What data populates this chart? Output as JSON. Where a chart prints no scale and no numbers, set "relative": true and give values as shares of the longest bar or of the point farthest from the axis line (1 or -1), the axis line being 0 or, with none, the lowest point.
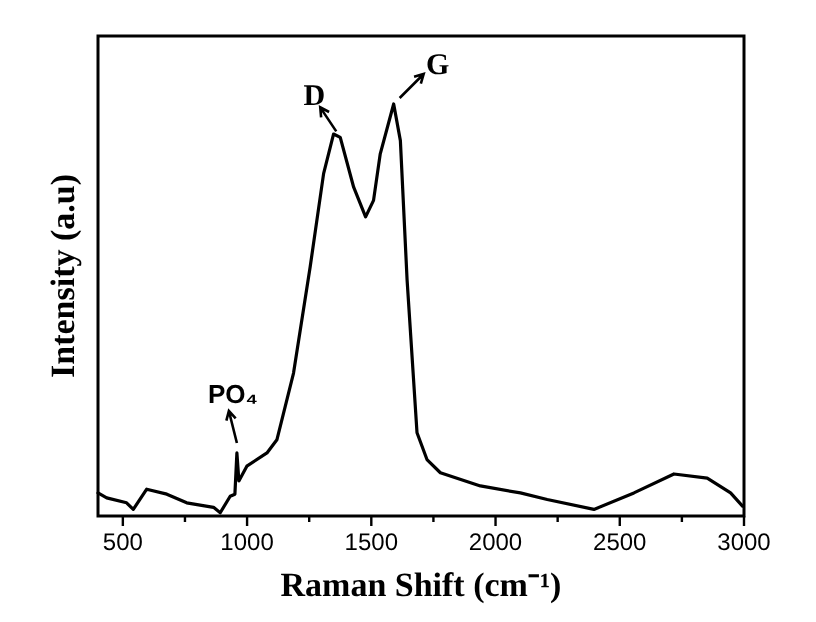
{
  "chart_data": {
    "type": "line",
    "relative": true,
    "xlabel": "Raman Shift (cm⁻¹)",
    "ylabel": "Intensity (a.u)",
    "xlim": [
      400,
      3000
    ],
    "xticks": [
      500,
      {
        "value": 750,
        "label": null
      },
      1000,
      {
        "value": 1250,
        "label": null
      },
      1500,
      {
        "value": 1750,
        "label": null
      },
      2000,
      {
        "value": 2250,
        "label": null
      },
      2500,
      {
        "value": 2750,
        "label": null
      },
      3000
    ],
    "x": [
      400,
      435,
      515,
      542,
      596,
      677,
      757,
      865,
      892,
      932,
      951,
      959,
      967,
      999,
      1080,
      1120,
      1187,
      1254,
      1308,
      1348,
      1375,
      1429,
      1477,
      1509,
      1536,
      1590,
      1617,
      1644,
      1684,
      1724,
      1778,
      1939,
      2100,
      2208,
      2396,
      2557,
      2718,
      2852,
      2946,
      2994
    ],
    "series": [
      {
        "color": "#000000",
        "values": [
          0.056,
          0.044,
          0.032,
          0.016,
          0.065,
          0.053,
          0.032,
          0.021,
          0.008,
          0.048,
          0.053,
          0.153,
          0.085,
          0.121,
          0.153,
          0.185,
          0.347,
          0.605,
          0.831,
          0.927,
          0.919,
          0.798,
          0.726,
          0.766,
          0.879,
          1.0,
          0.911,
          0.573,
          0.202,
          0.137,
          0.105,
          0.073,
          0.056,
          0.04,
          0.016,
          0.056,
          0.102,
          0.092,
          0.056,
          0.024
        ]
      }
    ],
    "annotations": [
      {
        "text": "D",
        "x": 1375,
        "y": 0.919
      },
      {
        "text": "G",
        "x": 1590,
        "y": 1.0
      },
      {
        "text": "PO₄",
        "x": 959,
        "y": 0.153
      }
    ],
    "grid": false
  }
}
